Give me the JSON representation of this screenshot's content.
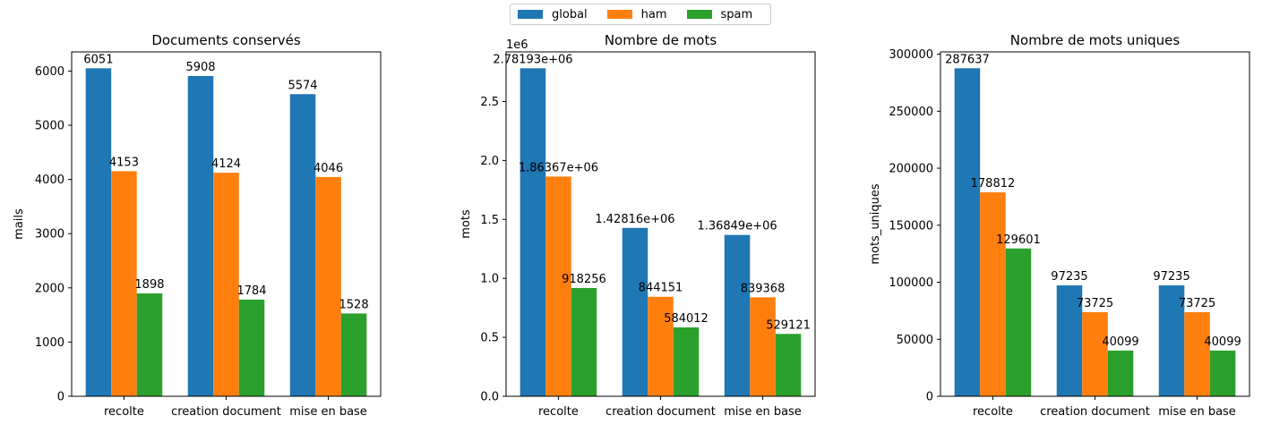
{
  "legend": [
    {
      "name": "global",
      "color": "#1f77b4"
    },
    {
      "name": "ham",
      "color": "#ff7f0e"
    },
    {
      "name": "spam",
      "color": "#2ca02c"
    }
  ],
  "chart_data": [
    {
      "type": "bar",
      "title": "Documents conservés",
      "ylabel": "mails",
      "xlabel": "",
      "categories": [
        "recolte",
        "creation document",
        "mise en base"
      ],
      "ylim": [
        0,
        6354
      ],
      "yticks": [
        0,
        1000,
        2000,
        3000,
        4000,
        5000,
        6000
      ],
      "ytick_labels": [
        "0",
        "1000",
        "2000",
        "3000",
        "4000",
        "5000",
        "6000"
      ],
      "offset_label": "",
      "grid": false,
      "series": [
        {
          "name": "global",
          "color": "#1f77b4",
          "values": [
            6051,
            5908,
            5574
          ],
          "labels": [
            "6051",
            "5908",
            "5574"
          ]
        },
        {
          "name": "ham",
          "color": "#ff7f0e",
          "values": [
            4153,
            4124,
            4046
          ],
          "labels": [
            "4153",
            "4124",
            "4046"
          ]
        },
        {
          "name": "spam",
          "color": "#2ca02c",
          "values": [
            1898,
            1784,
            1528
          ],
          "labels": [
            "1898",
            "1784",
            "1528"
          ]
        }
      ]
    },
    {
      "type": "bar",
      "title": "Nombre de mots",
      "ylabel": "mots",
      "xlabel": "",
      "categories": [
        "recolte",
        "creation document",
        "mise en base"
      ],
      "ylim": [
        0,
        2921000
      ],
      "yticks": [
        0,
        500000,
        1000000,
        1500000,
        2000000,
        2500000
      ],
      "ytick_labels": [
        "0.0",
        "0.5",
        "1.0",
        "1.5",
        "2.0",
        "2.5"
      ],
      "offset_label": "1e6",
      "grid": false,
      "series": [
        {
          "name": "global",
          "color": "#1f77b4",
          "values": [
            2781930,
            1428160,
            1368490
          ],
          "labels": [
            "2.78193e+06",
            "1.42816e+06",
            "1.36849e+06"
          ]
        },
        {
          "name": "ham",
          "color": "#ff7f0e",
          "values": [
            1863670,
            844151,
            839368
          ],
          "labels": [
            "1.86367e+06",
            "844151",
            "839368"
          ]
        },
        {
          "name": "spam",
          "color": "#2ca02c",
          "values": [
            918256,
            584012,
            529121
          ],
          "labels": [
            "918256",
            "584012",
            "529121"
          ]
        }
      ]
    },
    {
      "type": "bar",
      "title": "Nombre de mots uniques",
      "ylabel": "mots_uniques",
      "xlabel": "",
      "categories": [
        "recolte",
        "creation document",
        "mise en base"
      ],
      "ylim": [
        0,
        302000
      ],
      "yticks": [
        0,
        50000,
        100000,
        150000,
        200000,
        250000,
        300000
      ],
      "ytick_labels": [
        "0",
        "50000",
        "100000",
        "150000",
        "200000",
        "250000",
        "300000"
      ],
      "offset_label": "",
      "grid": false,
      "series": [
        {
          "name": "global",
          "color": "#1f77b4",
          "values": [
            287637,
            97235,
            97235
          ],
          "labels": [
            "287637",
            "97235",
            "97235"
          ]
        },
        {
          "name": "ham",
          "color": "#ff7f0e",
          "values": [
            178812,
            73725,
            73725
          ],
          "labels": [
            "178812",
            "73725",
            "73725"
          ]
        },
        {
          "name": "spam",
          "color": "#2ca02c",
          "values": [
            129601,
            40099,
            40099
          ],
          "labels": [
            "129601",
            "40099",
            "40099"
          ]
        }
      ]
    }
  ]
}
